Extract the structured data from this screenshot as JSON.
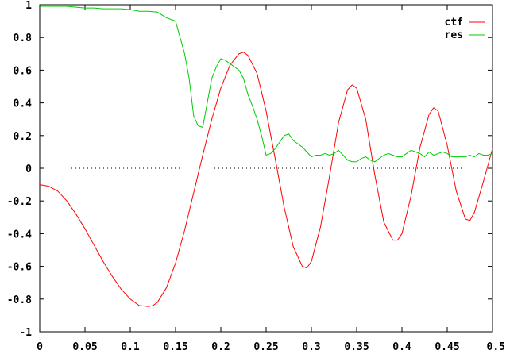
{
  "chart_data": {
    "type": "line",
    "xlim": [
      0,
      0.5
    ],
    "ylim": [
      -1,
      1
    ],
    "x_ticks": [
      "0",
      "0.05",
      "0.1",
      "0.15",
      "0.2",
      "0.25",
      "0.3",
      "0.35",
      "0.4",
      "0.45",
      "0.5"
    ],
    "y_ticks": [
      "1",
      "0.8",
      "0.6",
      "0.4",
      "0.2",
      "0",
      "-0.2",
      "-0.4",
      "-0.6",
      "-0.8",
      "-1"
    ],
    "zero_line": "dotted",
    "legend_position": "top-right",
    "series": [
      {
        "name": "ctf",
        "color": "#ff0000",
        "points": [
          [
            0,
            -0.1
          ],
          [
            0.01,
            -0.11
          ],
          [
            0.02,
            -0.14
          ],
          [
            0.03,
            -0.2
          ],
          [
            0.04,
            -0.28
          ],
          [
            0.05,
            -0.37
          ],
          [
            0.06,
            -0.47
          ],
          [
            0.07,
            -0.57
          ],
          [
            0.08,
            -0.66
          ],
          [
            0.09,
            -0.74
          ],
          [
            0.1,
            -0.8
          ],
          [
            0.11,
            -0.84
          ],
          [
            0.12,
            -0.845
          ],
          [
            0.125,
            -0.84
          ],
          [
            0.13,
            -0.82
          ],
          [
            0.14,
            -0.73
          ],
          [
            0.15,
            -0.58
          ],
          [
            0.16,
            -0.38
          ],
          [
            0.17,
            -0.15
          ],
          [
            0.18,
            0.08
          ],
          [
            0.19,
            0.3
          ],
          [
            0.2,
            0.49
          ],
          [
            0.21,
            0.63
          ],
          [
            0.22,
            0.7
          ],
          [
            0.225,
            0.71
          ],
          [
            0.23,
            0.69
          ],
          [
            0.24,
            0.58
          ],
          [
            0.25,
            0.35
          ],
          [
            0.26,
            0.06
          ],
          [
            0.27,
            -0.24
          ],
          [
            0.28,
            -0.48
          ],
          [
            0.29,
            -0.6
          ],
          [
            0.295,
            -0.61
          ],
          [
            0.3,
            -0.57
          ],
          [
            0.31,
            -0.36
          ],
          [
            0.32,
            -0.05
          ],
          [
            0.33,
            0.28
          ],
          [
            0.34,
            0.48
          ],
          [
            0.345,
            0.51
          ],
          [
            0.35,
            0.49
          ],
          [
            0.36,
            0.3
          ],
          [
            0.37,
            -0.04
          ],
          [
            0.38,
            -0.33
          ],
          [
            0.39,
            -0.44
          ],
          [
            0.395,
            -0.44
          ],
          [
            0.4,
            -0.4
          ],
          [
            0.41,
            -0.17
          ],
          [
            0.42,
            0.13
          ],
          [
            0.43,
            0.33
          ],
          [
            0.435,
            0.37
          ],
          [
            0.44,
            0.35
          ],
          [
            0.45,
            0.14
          ],
          [
            0.46,
            -0.14
          ],
          [
            0.47,
            -0.31
          ],
          [
            0.475,
            -0.32
          ],
          [
            0.48,
            -0.27
          ],
          [
            0.49,
            -0.08
          ],
          [
            0.5,
            0.12
          ]
        ]
      },
      {
        "name": "res",
        "color": "#00cc00",
        "points": [
          [
            0,
            0.99
          ],
          [
            0.01,
            0.99
          ],
          [
            0.02,
            0.99
          ],
          [
            0.03,
            0.99
          ],
          [
            0.04,
            0.985
          ],
          [
            0.05,
            0.98
          ],
          [
            0.06,
            0.98
          ],
          [
            0.07,
            0.975
          ],
          [
            0.08,
            0.975
          ],
          [
            0.09,
            0.975
          ],
          [
            0.1,
            0.97
          ],
          [
            0.11,
            0.96
          ],
          [
            0.12,
            0.96
          ],
          [
            0.13,
            0.955
          ],
          [
            0.14,
            0.92
          ],
          [
            0.15,
            0.9
          ],
          [
            0.155,
            0.8
          ],
          [
            0.16,
            0.7
          ],
          [
            0.165,
            0.55
          ],
          [
            0.17,
            0.32
          ],
          [
            0.175,
            0.26
          ],
          [
            0.18,
            0.25
          ],
          [
            0.185,
            0.4
          ],
          [
            0.19,
            0.55
          ],
          [
            0.195,
            0.62
          ],
          [
            0.2,
            0.67
          ],
          [
            0.205,
            0.66
          ],
          [
            0.21,
            0.64
          ],
          [
            0.215,
            0.62
          ],
          [
            0.22,
            0.6
          ],
          [
            0.225,
            0.55
          ],
          [
            0.23,
            0.45
          ],
          [
            0.235,
            0.38
          ],
          [
            0.24,
            0.3
          ],
          [
            0.245,
            0.2
          ],
          [
            0.25,
            0.08
          ],
          [
            0.255,
            0.09
          ],
          [
            0.26,
            0.12
          ],
          [
            0.265,
            0.16
          ],
          [
            0.27,
            0.2
          ],
          [
            0.275,
            0.21
          ],
          [
            0.28,
            0.17
          ],
          [
            0.285,
            0.15
          ],
          [
            0.29,
            0.13
          ],
          [
            0.295,
            0.1
          ],
          [
            0.3,
            0.07
          ],
          [
            0.305,
            0.08
          ],
          [
            0.31,
            0.08
          ],
          [
            0.315,
            0.09
          ],
          [
            0.32,
            0.08
          ],
          [
            0.325,
            0.09
          ],
          [
            0.33,
            0.11
          ],
          [
            0.335,
            0.08
          ],
          [
            0.34,
            0.05
          ],
          [
            0.345,
            0.04
          ],
          [
            0.35,
            0.04
          ],
          [
            0.355,
            0.06
          ],
          [
            0.36,
            0.07
          ],
          [
            0.365,
            0.05
          ],
          [
            0.37,
            0.04
          ],
          [
            0.375,
            0.06
          ],
          [
            0.38,
            0.08
          ],
          [
            0.385,
            0.09
          ],
          [
            0.39,
            0.08
          ],
          [
            0.395,
            0.07
          ],
          [
            0.4,
            0.07
          ],
          [
            0.405,
            0.09
          ],
          [
            0.41,
            0.11
          ],
          [
            0.415,
            0.1
          ],
          [
            0.42,
            0.09
          ],
          [
            0.425,
            0.07
          ],
          [
            0.43,
            0.1
          ],
          [
            0.435,
            0.08
          ],
          [
            0.44,
            0.09
          ],
          [
            0.445,
            0.1
          ],
          [
            0.45,
            0.09
          ],
          [
            0.455,
            0.07
          ],
          [
            0.46,
            0.07
          ],
          [
            0.465,
            0.07
          ],
          [
            0.47,
            0.07
          ],
          [
            0.475,
            0.08
          ],
          [
            0.48,
            0.07
          ],
          [
            0.485,
            0.09
          ],
          [
            0.49,
            0.08
          ],
          [
            0.495,
            0.08
          ],
          [
            0.5,
            0.09
          ]
        ]
      }
    ]
  }
}
